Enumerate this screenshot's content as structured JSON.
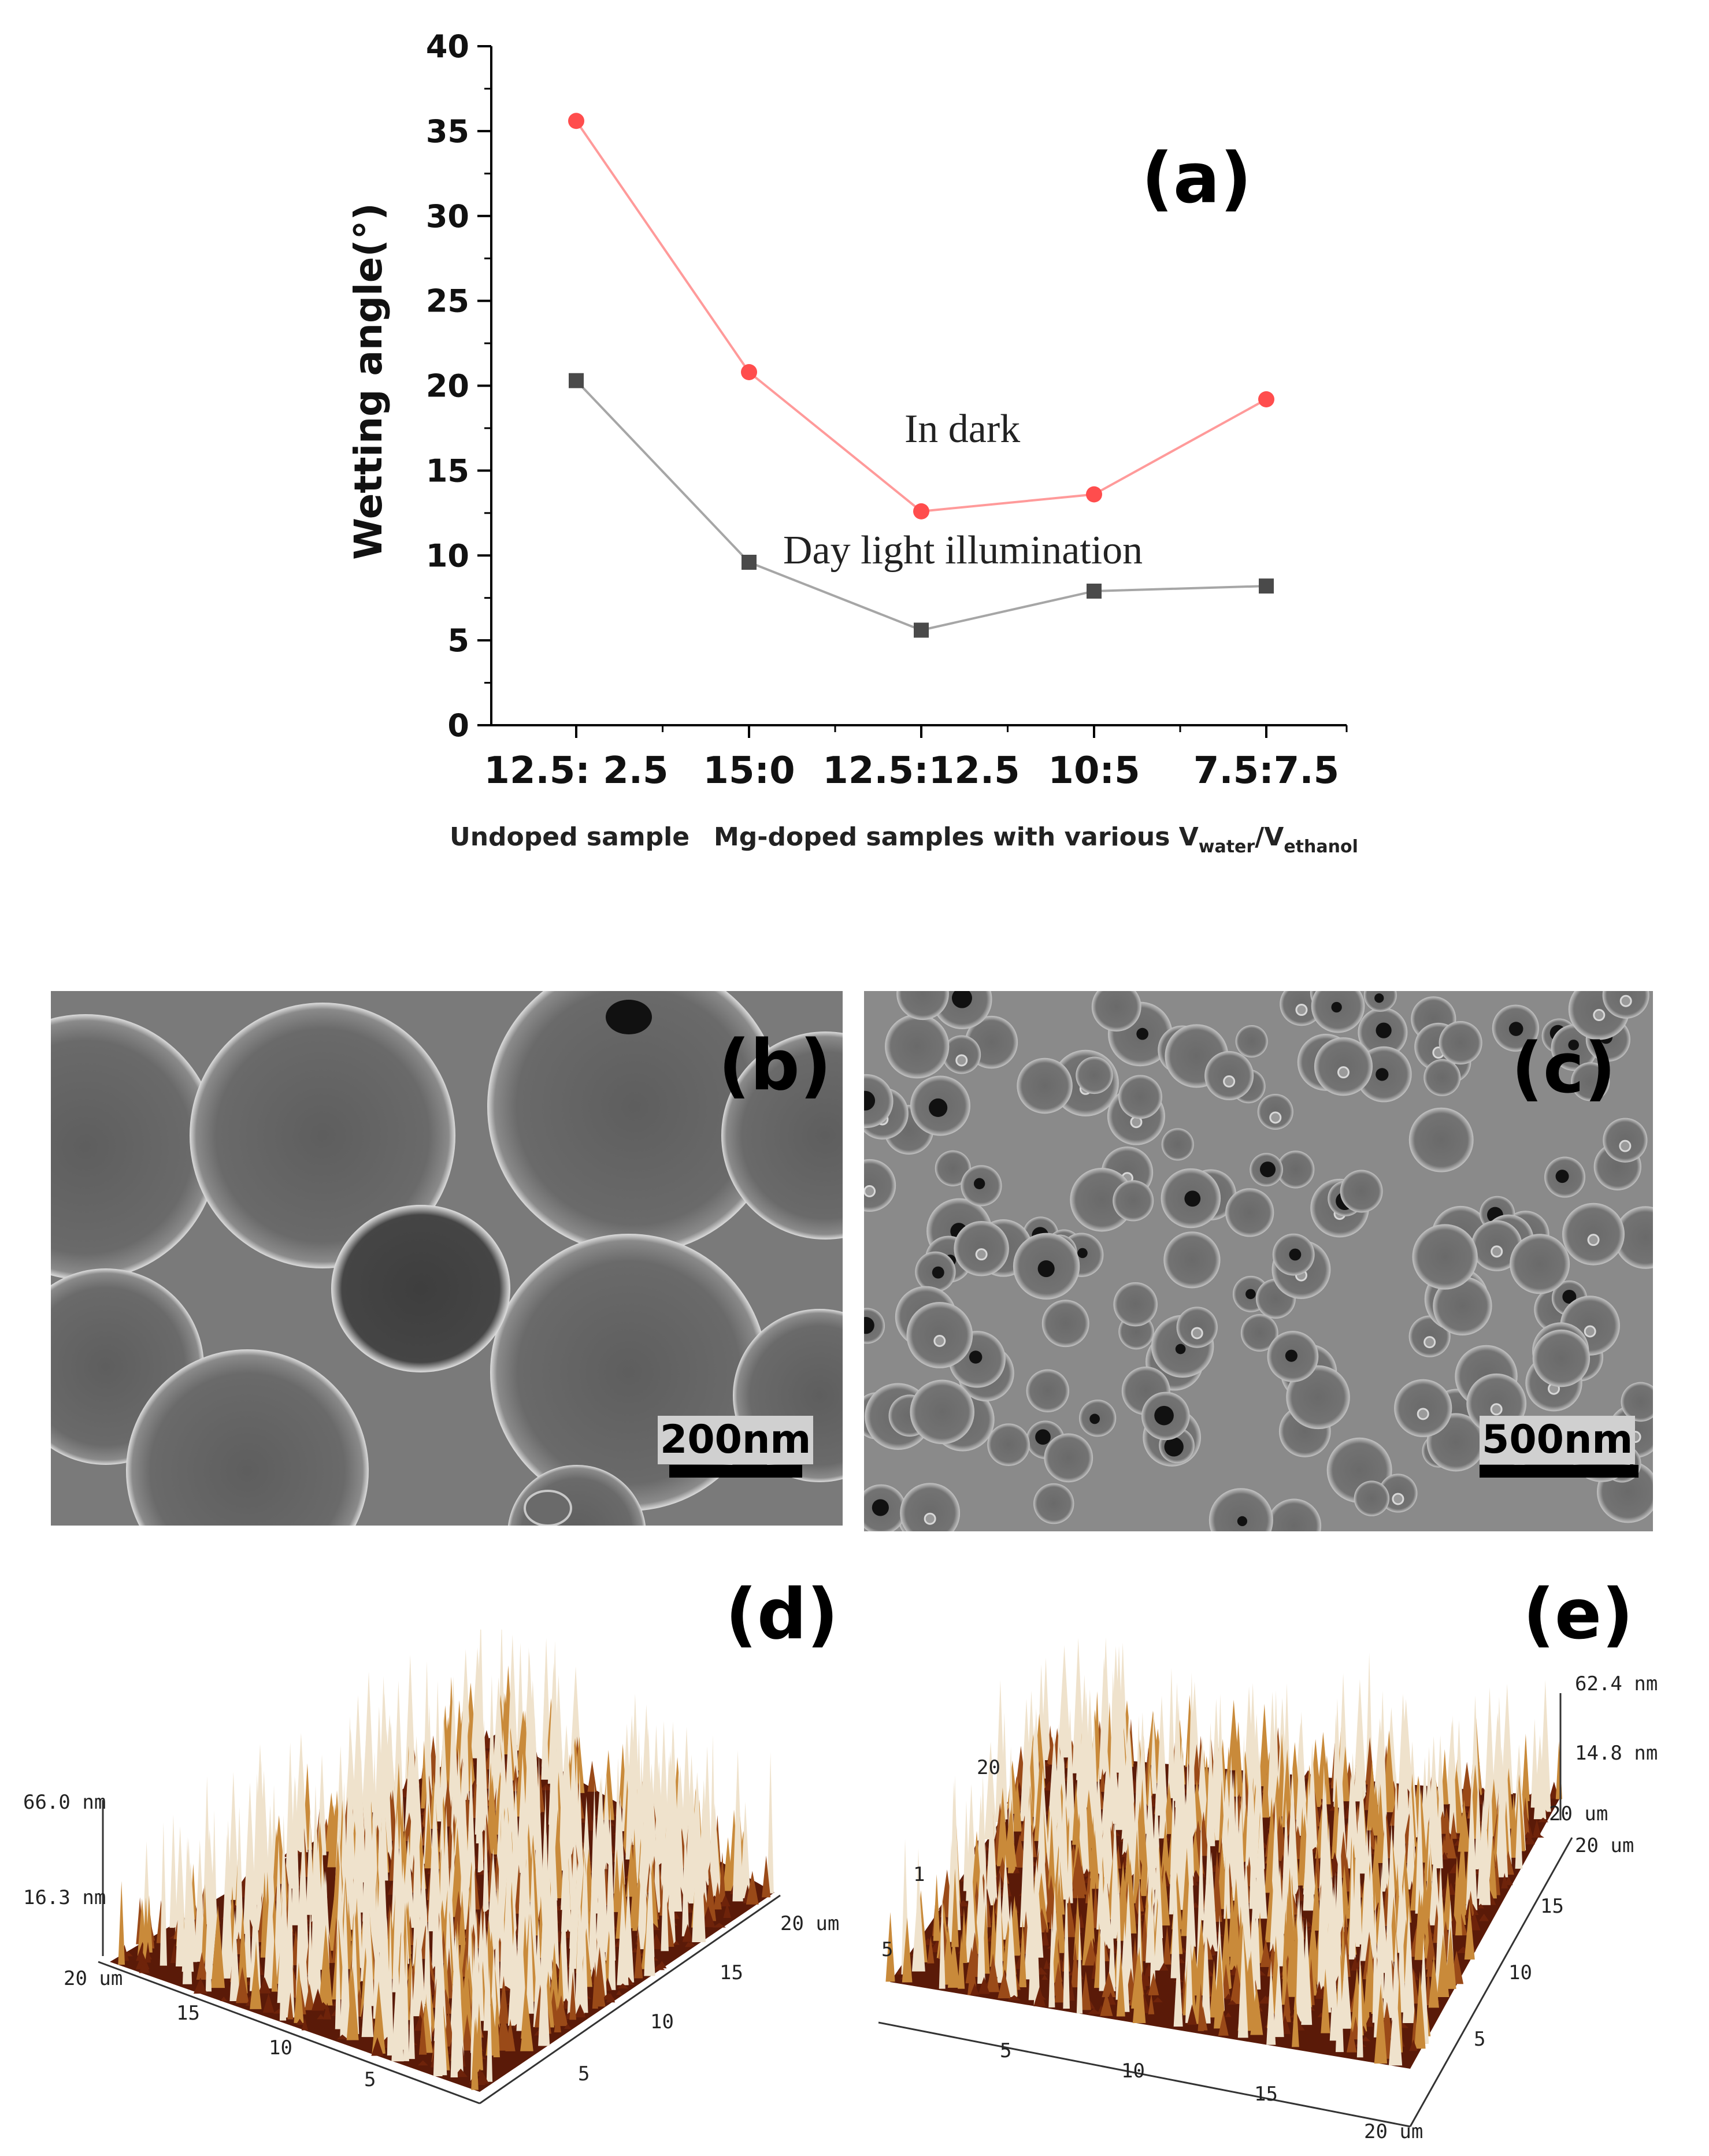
{
  "chart_data": {
    "type": "line",
    "panel": "(a)",
    "ylabel": "Wetting angle(°)",
    "ylim": [
      0,
      40
    ],
    "yticks": [
      0,
      5,
      10,
      15,
      20,
      25,
      30,
      35,
      40
    ],
    "categories": [
      "12.5: 2.5",
      "15:0",
      "12.5:12.5",
      "10:5",
      "7.5:7.5"
    ],
    "xcaption_left": "Undoped sample",
    "xcaption_right_main": "Mg-doped samples with various V",
    "xcaption_sub1": "water",
    "xcaption_slash": "/V",
    "xcaption_sub2": "ethanol",
    "series": [
      {
        "name": "In dark",
        "values": [
          35.6,
          20.8,
          12.6,
          13.6,
          19.2
        ],
        "color": "#ff4d4d",
        "line_color": "#ff9a9a",
        "marker": "circle"
      },
      {
        "name": "Day light illumination",
        "values": [
          20.3,
          9.6,
          5.6,
          7.9,
          8.2
        ],
        "color": "#4a4a4a",
        "line_color": "#a6a6a6",
        "marker": "square"
      }
    ],
    "grid": false
  },
  "panels": {
    "b": {
      "letter": "(b)",
      "scale": "200nm"
    },
    "c": {
      "letter": "(c)",
      "scale": "500nm"
    },
    "d": {
      "letter": "(d)",
      "zmax": "66.0 nm",
      "zmid": "16.3 nm",
      "left_axis": [
        "20 um",
        "15",
        "10",
        "5"
      ],
      "right_axis": [
        "20 um",
        "15",
        "10",
        "5"
      ]
    },
    "e": {
      "letter": "(e)",
      "zmax": "62.4 nm",
      "zmid": "14.8 nm",
      "zmin": "20 um",
      "left_axis": [
        "20",
        "1",
        "5"
      ],
      "bottom_axis": [
        "5",
        "10",
        "15",
        "20 um"
      ],
      "right_axis": [
        "20 um",
        "15",
        "10",
        "5"
      ]
    }
  }
}
